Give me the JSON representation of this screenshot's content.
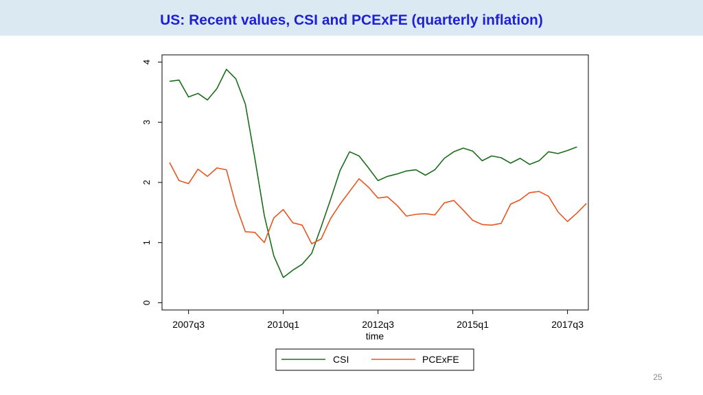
{
  "slide": {
    "title": "US: Recent values, CSI and PCExFE (quarterly inflation)",
    "page_number": "25"
  },
  "chart_data": {
    "type": "line",
    "title": "",
    "xlabel": "time",
    "ylabel": "",
    "x_start": "2007q1",
    "xlim": [
      -0.8,
      44.2
    ],
    "ylim": [
      -0.12,
      4.12
    ],
    "y_ticks": [
      0,
      1,
      2,
      3,
      4
    ],
    "y_tick_labels": [
      "0",
      "1",
      "2",
      "3",
      "4"
    ],
    "x_ticks": [
      2,
      12,
      22,
      32,
      42
    ],
    "x_tick_labels": [
      "2007q3",
      "2010q1",
      "2012q3",
      "2015q1",
      "2017q3"
    ],
    "grid": false,
    "legend_position": "bottom",
    "series": [
      {
        "name": "CSI",
        "color": "#1a6b1a",
        "values": [
          3.68,
          3.7,
          3.42,
          3.48,
          3.37,
          3.56,
          3.88,
          3.72,
          3.3,
          2.4,
          1.45,
          0.78,
          0.42,
          0.54,
          0.64,
          0.82,
          1.26,
          1.72,
          2.2,
          2.51,
          2.44,
          2.24,
          2.03,
          2.1,
          2.14,
          2.19,
          2.21,
          2.12,
          2.21,
          2.4,
          2.51,
          2.57,
          2.52,
          2.36,
          2.44,
          2.41,
          2.32,
          2.4,
          2.3,
          2.36,
          2.51,
          2.48,
          2.53,
          2.59
        ]
      },
      {
        "name": "PCExFE",
        "color": "#e8541c",
        "values": [
          2.33,
          2.03,
          1.98,
          2.22,
          2.1,
          2.24,
          2.21,
          1.62,
          1.18,
          1.17,
          1.0,
          1.41,
          1.55,
          1.33,
          1.29,
          0.98,
          1.06,
          1.4,
          1.64,
          1.85,
          2.06,
          1.92,
          1.74,
          1.76,
          1.62,
          1.44,
          1.47,
          1.48,
          1.46,
          1.66,
          1.7,
          1.54,
          1.37,
          1.3,
          1.29,
          1.32,
          1.64,
          1.71,
          1.83,
          1.85,
          1.77,
          1.51,
          1.35,
          1.49,
          1.65
        ]
      }
    ]
  }
}
